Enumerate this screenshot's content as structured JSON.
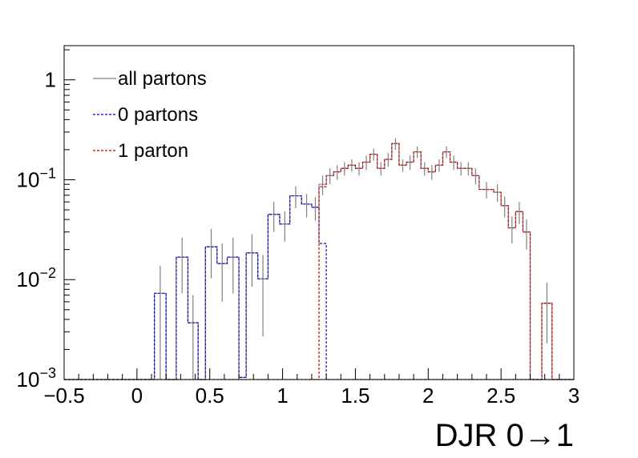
{
  "chart_data": {
    "type": "histogram",
    "xlabel": "DJR 0→1",
    "ylabel": "",
    "xlim": [
      -0.5,
      3.0
    ],
    "ylim": [
      0.001,
      2.2
    ],
    "ylog": true,
    "grid": false,
    "x_ticks": [
      "−0.5",
      "0",
      "0.5",
      "1",
      "1.5",
      "2",
      "2.5",
      "3"
    ],
    "y_ticks": [
      {
        "base": "1",
        "exp": ""
      },
      {
        "base": "10",
        "exp": "−1"
      },
      {
        "base": "10",
        "exp": "−2"
      },
      {
        "base": "10",
        "exp": "−3"
      }
    ],
    "bin_edges": [
      -0.5,
      0.62,
      0.7,
      0.78,
      0.86,
      0.94,
      1.02,
      1.1,
      1.18,
      1.26,
      1.34,
      1.42,
      1.5,
      1.58,
      1.66,
      1.74,
      1.82,
      1.9,
      1.98,
      2.06,
      2.14,
      2.22,
      2.3,
      2.38,
      2.46,
      2.54,
      2.62,
      2.7
    ],
    "legend": {
      "position": "top-left",
      "entries": [
        {
          "label": "all partons",
          "color": "#808080",
          "style": "solid"
        },
        {
          "label": "0 partons",
          "color": "#0000cc",
          "style": "dotted"
        },
        {
          "label": "1 parton",
          "color": "#cc0000",
          "style": "dotted"
        }
      ]
    },
    "series": [
      {
        "name": "all partons",
        "color": "#808080",
        "bins": [
          {
            "x0": -0.5,
            "x1": 0.12,
            "y": 0.001
          },
          {
            "x0": 0.12,
            "x1": 0.2,
            "y": 0.0073,
            "err": 0.0065
          },
          {
            "x0": 0.2,
            "x1": 0.27,
            "y": 0.001
          },
          {
            "x0": 0.27,
            "x1": 0.35,
            "y": 0.0168,
            "err": 0.0095
          },
          {
            "x0": 0.35,
            "x1": 0.42,
            "y": 0.0037,
            "err": 0.0033
          },
          {
            "x0": 0.42,
            "x1": 0.47,
            "y": 0.001
          },
          {
            "x0": 0.47,
            "x1": 0.55,
            "y": 0.0213,
            "err": 0.011
          },
          {
            "x0": 0.55,
            "x1": 0.62,
            "y": 0.0145,
            "err": 0.0085
          },
          {
            "x0": 0.62,
            "x1": 0.7,
            "y": 0.0168,
            "err": 0.0095
          },
          {
            "x0": 0.7,
            "x1": 0.75,
            "y": 0.00105
          },
          {
            "x0": 0.75,
            "x1": 0.83,
            "y": 0.0185,
            "err": 0.01
          },
          {
            "x0": 0.83,
            "x1": 0.9,
            "y": 0.0102,
            "err": 0.0075
          },
          {
            "x0": 0.9,
            "x1": 0.98,
            "y": 0.045,
            "err": 0.015
          },
          {
            "x0": 0.98,
            "x1": 1.05,
            "y": 0.036,
            "err": 0.012
          },
          {
            "x0": 1.05,
            "x1": 1.13,
            "y": 0.069,
            "err": 0.017
          },
          {
            "x0": 1.13,
            "x1": 1.2,
            "y": 0.057,
            "err": 0.015
          },
          {
            "x0": 1.2,
            "x1": 1.25,
            "y": 0.053,
            "err": 0.014
          },
          {
            "x0": 1.25,
            "x1": 1.3,
            "y": 0.09,
            "err": 0.02
          },
          {
            "x0": 1.3,
            "x1": 1.35,
            "y": 0.11,
            "err": 0.02
          },
          {
            "x0": 1.35,
            "x1": 1.4,
            "y": 0.12,
            "err": 0.02
          },
          {
            "x0": 1.4,
            "x1": 1.45,
            "y": 0.13,
            "err": 0.02
          },
          {
            "x0": 1.45,
            "x1": 1.5,
            "y": 0.14,
            "err": 0.02
          },
          {
            "x0": 1.5,
            "x1": 1.55,
            "y": 0.13,
            "err": 0.02
          },
          {
            "x0": 1.55,
            "x1": 1.6,
            "y": 0.15,
            "err": 0.025
          },
          {
            "x0": 1.6,
            "x1": 1.65,
            "y": 0.18,
            "err": 0.025
          },
          {
            "x0": 1.65,
            "x1": 1.7,
            "y": 0.13,
            "err": 0.02
          },
          {
            "x0": 1.7,
            "x1": 1.75,
            "y": 0.16,
            "err": 0.025
          },
          {
            "x0": 1.75,
            "x1": 1.8,
            "y": 0.23,
            "err": 0.03
          },
          {
            "x0": 1.8,
            "x1": 1.85,
            "y": 0.14,
            "err": 0.02
          },
          {
            "x0": 1.85,
            "x1": 1.9,
            "y": 0.15,
            "err": 0.025
          },
          {
            "x0": 1.9,
            "x1": 1.95,
            "y": 0.19,
            "err": 0.025
          },
          {
            "x0": 1.95,
            "x1": 2.0,
            "y": 0.13,
            "err": 0.02
          },
          {
            "x0": 2.0,
            "x1": 2.05,
            "y": 0.12,
            "err": 0.02
          },
          {
            "x0": 2.05,
            "x1": 2.1,
            "y": 0.14,
            "err": 0.02
          },
          {
            "x0": 2.1,
            "x1": 2.15,
            "y": 0.19,
            "err": 0.025
          },
          {
            "x0": 2.15,
            "x1": 2.2,
            "y": 0.15,
            "err": 0.025
          },
          {
            "x0": 2.2,
            "x1": 2.25,
            "y": 0.13,
            "err": 0.02
          },
          {
            "x0": 2.25,
            "x1": 2.3,
            "y": 0.13,
            "err": 0.02
          },
          {
            "x0": 2.3,
            "x1": 2.35,
            "y": 0.11,
            "err": 0.02
          },
          {
            "x0": 2.35,
            "x1": 2.45,
            "y": 0.08,
            "err": 0.015
          },
          {
            "x0": 2.45,
            "x1": 2.5,
            "y": 0.075,
            "err": 0.015
          },
          {
            "x0": 2.5,
            "x1": 2.55,
            "y": 0.055,
            "err": 0.013
          },
          {
            "x0": 2.55,
            "x1": 2.6,
            "y": 0.033,
            "err": 0.01
          },
          {
            "x0": 2.6,
            "x1": 2.65,
            "y": 0.048,
            "err": 0.012
          },
          {
            "x0": 2.65,
            "x1": 2.7,
            "y": 0.03,
            "err": 0.01
          },
          {
            "x0": 2.7,
            "x1": 2.78,
            "y": 0.001
          },
          {
            "x0": 2.78,
            "x1": 2.85,
            "y": 0.0058,
            "err": 0.0035
          },
          {
            "x0": 2.85,
            "x1": 3.0,
            "y": 0.001
          }
        ]
      },
      {
        "name": "0 partons",
        "color": "#0000cc",
        "bins": [
          {
            "x0": -0.5,
            "x1": 0.12,
            "y": 0.001
          },
          {
            "x0": 0.12,
            "x1": 0.2,
            "y": 0.0073
          },
          {
            "x0": 0.2,
            "x1": 0.27,
            "y": 0.001
          },
          {
            "x0": 0.27,
            "x1": 0.35,
            "y": 0.0168
          },
          {
            "x0": 0.35,
            "x1": 0.42,
            "y": 0.0037
          },
          {
            "x0": 0.42,
            "x1": 0.47,
            "y": 0.001
          },
          {
            "x0": 0.47,
            "x1": 0.55,
            "y": 0.0213
          },
          {
            "x0": 0.55,
            "x1": 0.62,
            "y": 0.0145
          },
          {
            "x0": 0.62,
            "x1": 0.7,
            "y": 0.0168
          },
          {
            "x0": 0.7,
            "x1": 0.75,
            "y": 0.00105
          },
          {
            "x0": 0.75,
            "x1": 0.83,
            "y": 0.0185
          },
          {
            "x0": 0.83,
            "x1": 0.9,
            "y": 0.0102
          },
          {
            "x0": 0.9,
            "x1": 0.98,
            "y": 0.045
          },
          {
            "x0": 0.98,
            "x1": 1.05,
            "y": 0.036
          },
          {
            "x0": 1.05,
            "x1": 1.13,
            "y": 0.069
          },
          {
            "x0": 1.13,
            "x1": 1.2,
            "y": 0.057
          },
          {
            "x0": 1.2,
            "x1": 1.25,
            "y": 0.053
          },
          {
            "x0": 1.25,
            "x1": 1.3,
            "y": 0.023
          },
          {
            "x0": 1.3,
            "x1": 3.0,
            "y": 0.001
          }
        ]
      },
      {
        "name": "1 parton",
        "color": "#cc0000",
        "bins": [
          {
            "x0": -0.5,
            "x1": 1.25,
            "y": 0.001
          },
          {
            "x0": 1.25,
            "x1": 1.3,
            "y": 0.085
          },
          {
            "x0": 1.3,
            "x1": 1.35,
            "y": 0.11
          },
          {
            "x0": 1.35,
            "x1": 1.4,
            "y": 0.12
          },
          {
            "x0": 1.4,
            "x1": 1.45,
            "y": 0.13
          },
          {
            "x0": 1.45,
            "x1": 1.5,
            "y": 0.14
          },
          {
            "x0": 1.5,
            "x1": 1.55,
            "y": 0.13
          },
          {
            "x0": 1.55,
            "x1": 1.6,
            "y": 0.15
          },
          {
            "x0": 1.6,
            "x1": 1.65,
            "y": 0.18
          },
          {
            "x0": 1.65,
            "x1": 1.7,
            "y": 0.13
          },
          {
            "x0": 1.7,
            "x1": 1.75,
            "y": 0.16
          },
          {
            "x0": 1.75,
            "x1": 1.8,
            "y": 0.23
          },
          {
            "x0": 1.8,
            "x1": 1.85,
            "y": 0.14
          },
          {
            "x0": 1.85,
            "x1": 1.9,
            "y": 0.15
          },
          {
            "x0": 1.9,
            "x1": 1.95,
            "y": 0.19
          },
          {
            "x0": 1.95,
            "x1": 2.0,
            "y": 0.13
          },
          {
            "x0": 2.0,
            "x1": 2.05,
            "y": 0.12
          },
          {
            "x0": 2.05,
            "x1": 2.1,
            "y": 0.14
          },
          {
            "x0": 2.1,
            "x1": 2.15,
            "y": 0.19
          },
          {
            "x0": 2.15,
            "x1": 2.2,
            "y": 0.15
          },
          {
            "x0": 2.2,
            "x1": 2.25,
            "y": 0.13
          },
          {
            "x0": 2.25,
            "x1": 2.3,
            "y": 0.13
          },
          {
            "x0": 2.3,
            "x1": 2.35,
            "y": 0.11
          },
          {
            "x0": 2.35,
            "x1": 2.45,
            "y": 0.08
          },
          {
            "x0": 2.45,
            "x1": 2.5,
            "y": 0.075
          },
          {
            "x0": 2.5,
            "x1": 2.55,
            "y": 0.055
          },
          {
            "x0": 2.55,
            "x1": 2.6,
            "y": 0.033
          },
          {
            "x0": 2.6,
            "x1": 2.65,
            "y": 0.048
          },
          {
            "x0": 2.65,
            "x1": 2.7,
            "y": 0.03
          },
          {
            "x0": 2.7,
            "x1": 2.78,
            "y": 0.001
          },
          {
            "x0": 2.78,
            "x1": 2.85,
            "y": 0.0058
          },
          {
            "x0": 2.85,
            "x1": 3.0,
            "y": 0.001
          }
        ]
      }
    ]
  }
}
